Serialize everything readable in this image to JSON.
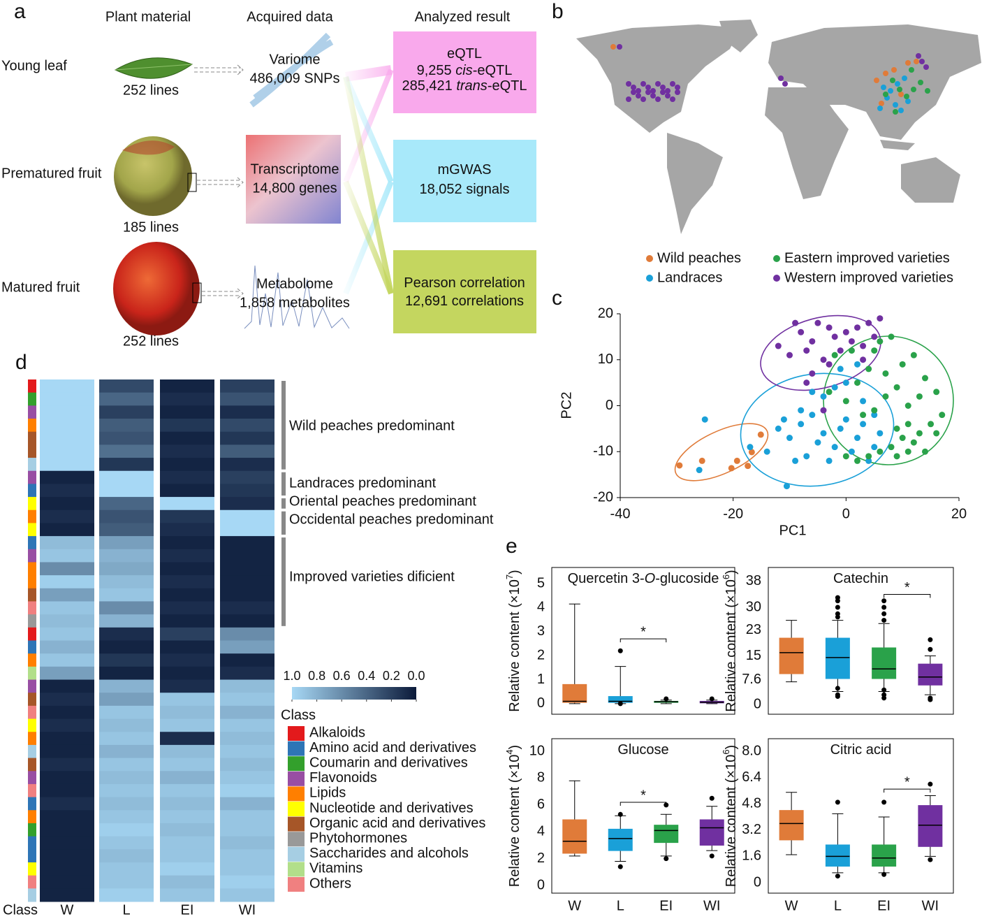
{
  "panel_labels": [
    "a",
    "b",
    "c",
    "d",
    "e"
  ],
  "panel_a": {
    "headers": [
      "Plant material",
      "Acquired data",
      "Analyzed result"
    ],
    "materials": [
      {
        "name": "Young leaf",
        "lines": "252 lines"
      },
      {
        "name": "Prematured fruit",
        "lines": "185 lines"
      },
      {
        "name": "Matured fruit",
        "lines": "252 lines"
      }
    ],
    "data": [
      {
        "name": "Variome",
        "detail": "486,009 SNPs"
      },
      {
        "name": "Transcriptome",
        "detail": "14,800 genes"
      },
      {
        "name": "Metabolome",
        "detail": "1,858 metabolites"
      }
    ],
    "results": [
      [
        [
          {
            "text": "eQTL"
          }
        ],
        [
          {
            "text": "9,255 "
          },
          {
            "text": "cis",
            "italic": true
          },
          {
            "text": "-eQTL"
          }
        ],
        [
          {
            "text": "285,421 "
          },
          {
            "text": "trans",
            "italic": true
          },
          {
            "text": "-eQTL"
          }
        ]
      ],
      [
        [
          {
            "text": "mGWAS"
          }
        ],
        [
          {
            "text": "18,052 signals"
          }
        ]
      ],
      [
        [
          {
            "text": "Pearson correlation"
          }
        ],
        [
          {
            "text": "12,691 correlations"
          }
        ]
      ]
    ],
    "result_colors": [
      "#f9a9ec",
      "#a8e9fa",
      "#c4d65f"
    ]
  },
  "panel_b": {
    "legend": [
      {
        "name": "Wild peaches",
        "color": "#e07b39"
      },
      {
        "name": "Eastern improved varieties",
        "color": "#2aa24a"
      },
      {
        "name": "Landraces",
        "color": "#1aa0d8"
      },
      {
        "name": "Western improved varieties",
        "color": "#7030a0"
      }
    ]
  },
  "chart_data": [
    {
      "type": "scatter",
      "xlabel": "PC1",
      "ylabel": "PC2",
      "xlim": [
        -40,
        20
      ],
      "ylim": [
        -20,
        20
      ],
      "xticks": [
        -40,
        -20,
        0,
        20
      ],
      "yticks": [
        -20,
        -10,
        0,
        10,
        20
      ],
      "series": [
        {
          "name": "Wild peaches",
          "color": "#e07b39",
          "x": [
            -29.5,
            -25.5,
            -20.3,
            -19.3,
            -17.4,
            -16.7,
            -15.1
          ],
          "y": [
            -13,
            -12,
            -13.6,
            -12,
            -13.1,
            -10.1,
            -6.3
          ]
        },
        {
          "name": "Landraces",
          "color": "#1aa0d8",
          "x": [
            -25,
            -26,
            -10.5,
            -17,
            -14,
            -12,
            -10,
            -8,
            -6,
            -5,
            -4,
            -3,
            -2,
            -1,
            0,
            1,
            2,
            3,
            4,
            5,
            6,
            -7,
            -9,
            -11,
            -4,
            -2,
            0,
            3,
            -6,
            -1,
            2,
            5,
            -8
          ],
          "y": [
            -3,
            -14,
            -17.5,
            -9,
            -10,
            -5,
            -7,
            -4,
            -2,
            -8,
            -6,
            -12,
            -9,
            -5,
            -3,
            -10,
            -7,
            -4,
            -12,
            -9,
            -6,
            -11,
            -12,
            -3,
            2,
            4,
            5,
            1,
            3,
            8,
            9,
            -2,
            -1
          ]
        },
        {
          "name": "Eastern improved varieties",
          "color": "#2aa24a",
          "x": [
            -3,
            0,
            2,
            4,
            5,
            6,
            8,
            10,
            12,
            14,
            16,
            17,
            15,
            13,
            11,
            9,
            10,
            12,
            8,
            6,
            4,
            2,
            0,
            14,
            16,
            7,
            9,
            11,
            13,
            5,
            3,
            1,
            -2,
            7,
            11,
            9
          ],
          "y": [
            3,
            1,
            5,
            8,
            12,
            14,
            15,
            9,
            11,
            6,
            3,
            -2,
            -4,
            -6,
            -4,
            -5,
            -7,
            -8,
            -9,
            -10,
            -11,
            -12,
            -11,
            -10,
            -6,
            2,
            4,
            0,
            2,
            -1,
            -2,
            12,
            11,
            7,
            -10,
            -11
          ]
        },
        {
          "name": "Western improved varieties",
          "color": "#7030a0",
          "x": [
            -12,
            -10,
            -8,
            -6,
            -5,
            -3,
            -2,
            0,
            2,
            3,
            4,
            5,
            6,
            -7,
            -4,
            -1,
            1,
            -9,
            3,
            -3,
            -6,
            -4,
            -7
          ],
          "y": [
            13,
            11,
            16,
            14,
            18,
            17,
            15,
            16,
            17,
            13,
            18,
            15,
            19,
            12,
            10,
            12,
            14,
            18,
            10,
            9,
            7,
            -1,
            5
          ]
        }
      ]
    },
    {
      "type": "heatmap",
      "x": [
        "W",
        "L",
        "EI",
        "WI"
      ],
      "strip_label": "Class",
      "z": [
        [
          1,
          0.25,
          0.05,
          0.2
        ],
        [
          1,
          0.4,
          0.1,
          0.3
        ],
        [
          1,
          0.2,
          0.05,
          0.1
        ],
        [
          1,
          0.35,
          0.15,
          0.25
        ],
        [
          1,
          0.3,
          0.05,
          0.15
        ],
        [
          1,
          0.45,
          0.1,
          0.35
        ],
        [
          1,
          0.15,
          0.05,
          0.1
        ],
        [
          0.05,
          1,
          0.1,
          0.2
        ],
        [
          0.1,
          1,
          0.05,
          0.15
        ],
        [
          0.05,
          0.4,
          1,
          0.1
        ],
        [
          0.1,
          0.3,
          0.15,
          1
        ],
        [
          0.05,
          0.35,
          0.1,
          1
        ],
        [
          0.85,
          0.7,
          0.05,
          0.05
        ],
        [
          0.9,
          0.8,
          0.1,
          0.05
        ],
        [
          0.6,
          0.75,
          0.05,
          0.05
        ],
        [
          0.95,
          0.85,
          0.1,
          0.05
        ],
        [
          0.7,
          0.9,
          0.05,
          0.05
        ],
        [
          0.9,
          0.6,
          0.1,
          0.1
        ],
        [
          0.85,
          0.8,
          0.05,
          0.05
        ],
        [
          0.9,
          0.1,
          0.2,
          0.6
        ],
        [
          0.8,
          0.05,
          0.05,
          0.7
        ],
        [
          0.9,
          0.15,
          0.1,
          0.05
        ],
        [
          0.7,
          0.05,
          0.05,
          0.1
        ],
        [
          0.05,
          0.8,
          0.1,
          0.85
        ],
        [
          0.1,
          0.7,
          0.9,
          0.9
        ],
        [
          0.05,
          0.9,
          0.85,
          0.8
        ],
        [
          0.1,
          0.85,
          0.9,
          0.9
        ],
        [
          0.05,
          0.9,
          0.1,
          0.85
        ],
        [
          0.05,
          0.8,
          0.85,
          0.9
        ],
        [
          0.1,
          0.9,
          0.9,
          0.85
        ],
        [
          0.05,
          0.85,
          0.8,
          0.9
        ],
        [
          0.05,
          0.9,
          0.9,
          0.95
        ],
        [
          0.1,
          0.85,
          0.85,
          0.8
        ],
        [
          0.05,
          0.9,
          0.9,
          0.9
        ],
        [
          0.05,
          0.95,
          0.85,
          0.9
        ],
        [
          0.05,
          0.9,
          0.9,
          0.85
        ],
        [
          0.05,
          0.85,
          0.9,
          0.9
        ],
        [
          0.05,
          0.9,
          0.95,
          0.9
        ],
        [
          0.05,
          0.9,
          0.85,
          0.95
        ],
        [
          0.05,
          0.95,
          0.9,
          0.9
        ]
      ],
      "row_classes": [
        "Alkaloids",
        "Coumarin and derivatives",
        "Flavonoids",
        "Lipids",
        "Organic acid and derivatives",
        "Organic acid and derivatives",
        "Saccharides and alcohols",
        "Flavonoids",
        "Amino acid and derivatives",
        "Nucleotide and derivatives",
        "Lipids",
        "Nucleotide and derivatives",
        "Amino acid and derivatives",
        "Flavonoids",
        "Lipids",
        "Lipids",
        "Organic acid and derivatives",
        "Others",
        "Phytohormones",
        "Alkaloids",
        "Amino acid and derivatives",
        "Lipids",
        "Vitamins",
        "Flavonoids",
        "Organic acid and derivatives",
        "Others",
        "Nucleotide and derivatives",
        "Lipids",
        "Saccharides and alcohols",
        "Organic acid and derivatives",
        "Flavonoids",
        "Others",
        "Amino acid and derivatives",
        "Lipids",
        "Coumarin and derivatives",
        "Amino acid and derivatives",
        "Amino acid and derivatives",
        "Nucleotide and derivatives",
        "Others",
        "Saccharides and alcohols"
      ],
      "annotations": [
        "Wild peaches predominant",
        "Landraces predominant",
        "Oriental peaches predominant",
        "Occidental peaches predominant",
        "Improved varieties dificient"
      ],
      "colorbar": {
        "ticks": [
          {
            "value": 1,
            "label": "1.0"
          },
          0.8,
          0.6,
          0.4,
          0.2,
          {
            "value": 0,
            "label": "0.0"
          }
        ],
        "colors": [
          "#a7d8f5",
          "#0b1a3a"
        ]
      },
      "legend_title": "Class",
      "classes": [
        {
          "name": "Alkaloids",
          "color": "#e31a1c"
        },
        {
          "name": "Amino acid and derivatives",
          "color": "#2e75b6"
        },
        {
          "name": "Coumarin and derivatives",
          "color": "#33a02c"
        },
        {
          "name": "Flavonoids",
          "color": "#984ea3"
        },
        {
          "name": "Lipids",
          "color": "#ff7f00"
        },
        {
          "name": "Nucleotide and derivatives",
          "color": "#ffff00"
        },
        {
          "name": "Organic acid and derivatives",
          "color": "#a65628"
        },
        {
          "name": "Phytohormones",
          "color": "#999999"
        },
        {
          "name": "Saccharides and alcohols",
          "color": "#a6cee3"
        },
        {
          "name": "Vitamins",
          "color": "#b2df8a"
        },
        {
          "name": "Others",
          "color": "#f08080"
        }
      ]
    },
    {
      "type": "box",
      "title": [
        {
          "text": "Quercetin 3-"
        },
        {
          "text": "O",
          "italic": true
        },
        {
          "text": "-glucoside"
        }
      ],
      "ylabel": [
        {
          "text": "Relative content (×10"
        },
        {
          "text": "7",
          "sup": true
        },
        {
          "text": ")"
        }
      ],
      "ylim": [
        -0.44,
        5.67
      ],
      "yticks": [
        0,
        1,
        2,
        3,
        4,
        5
      ],
      "colors": [
        "#e07b39",
        "#1aa0d8",
        "#2aa24a",
        "#7030a0"
      ],
      "boxes": [
        {
          "min": 0,
          "q1": 0.05,
          "median": 0.1,
          "q3": 0.8,
          "max": 4.15,
          "outliers": []
        },
        {
          "min": 0,
          "q1": 0.05,
          "median": 0.1,
          "q3": 0.3,
          "max": 1.55,
          "outliers": [
            2.2,
            0
          ]
        },
        {
          "min": 0,
          "q1": 0.05,
          "median": 0.08,
          "q3": 0.1,
          "max": 0.15,
          "outliers": [
            0.2
          ]
        },
        {
          "min": 0,
          "q1": 0.03,
          "median": 0.06,
          "q3": 0.1,
          "max": 0.15,
          "outliers": [
            0.2
          ]
        }
      ],
      "significance": {
        "between": [
          "L",
          "EI"
        ],
        "y": 2.7,
        "label": "*"
      }
    },
    {
      "type": "box",
      "title": [
        {
          "text": "Catechin"
        }
      ],
      "ylabel": [
        {
          "text": "Relative content (×10"
        },
        {
          "text": "6",
          "sup": true
        },
        {
          "text": ")"
        }
      ],
      "ylim": [
        -3.0,
        42.3
      ],
      "yticks": [
        0,
        7.6,
        15,
        23,
        30,
        38
      ],
      "colors": [
        "#e07b39",
        "#1aa0d8",
        "#2aa24a",
        "#7030a0"
      ],
      "boxes": [
        {
          "min": 7,
          "q1": 9.5,
          "median": 16,
          "q3": 20.5,
          "max": 26,
          "outliers": []
        },
        {
          "min": 4,
          "q1": 8,
          "median": 14.5,
          "q3": 20.5,
          "max": 26,
          "outliers": [
            27,
            28,
            30,
            32,
            33,
            3,
            2.5,
            5
          ]
        },
        {
          "min": 4,
          "q1": 8,
          "median": 11,
          "q3": 17.5,
          "max": 25,
          "outliers": [
            26,
            28,
            30,
            32,
            3,
            2,
            4.5
          ]
        },
        {
          "min": 3,
          "q1": 6,
          "median": 8.5,
          "q3": 12.5,
          "max": 15,
          "outliers": [
            17,
            20,
            2,
            1.5
          ]
        }
      ],
      "significance": {
        "between": [
          "EI",
          "WI"
        ],
        "y": 34,
        "label": "*"
      }
    },
    {
      "type": "box",
      "title": [
        {
          "text": "Glucose"
        }
      ],
      "ylabel": [
        {
          "text": "Relative content (×10"
        },
        {
          "text": "4",
          "sup": true
        },
        {
          "text": ")"
        }
      ],
      "categories": [
        "W",
        "L",
        "EI",
        "WI"
      ],
      "ylim": [
        -0.57,
        10.94
      ],
      "yticks": [
        0,
        2,
        4,
        6,
        8,
        10
      ],
      "colors": [
        "#e07b39",
        "#1aa0d8",
        "#2aa24a",
        "#7030a0"
      ],
      "boxes": [
        {
          "min": 2.2,
          "q1": 2.4,
          "median": 3.3,
          "q3": 4.9,
          "max": 7.8,
          "outliers": []
        },
        {
          "min": 1.8,
          "q1": 2.6,
          "median": 3.5,
          "q3": 4.2,
          "max": 5.2,
          "outliers": [
            1.4,
            5.3
          ]
        },
        {
          "min": 2.2,
          "q1": 3.2,
          "median": 4.1,
          "q3": 4.5,
          "max": 5.3,
          "outliers": [
            2.0,
            6.0
          ]
        },
        {
          "min": 2.6,
          "q1": 3.0,
          "median": 4.3,
          "q3": 4.9,
          "max": 5.9,
          "outliers": [
            2.2,
            6.5
          ]
        }
      ],
      "significance": {
        "between": [
          "L",
          "EI"
        ],
        "y": 6.2,
        "label": "*"
      }
    },
    {
      "type": "box",
      "title": [
        {
          "text": "Citric acid"
        }
      ],
      "ylabel": [
        {
          "text": "Relative content (×10"
        },
        {
          "text": "6",
          "sup": true
        },
        {
          "text": ")"
        }
      ],
      "categories": [
        "W",
        "L",
        "EI",
        "WI"
      ],
      "ylim": [
        -0.64,
        8.77
      ],
      "yticks": [
        0,
        1.6,
        3.2,
        4.8,
        6.4,
        {
          "value": 8,
          "label": "8.0"
        }
      ],
      "colors": [
        "#e07b39",
        "#1aa0d8",
        "#2aa24a",
        "#7030a0"
      ],
      "boxes": [
        {
          "min": 1.7,
          "q1": 2.6,
          "median": 3.6,
          "q3": 4.4,
          "max": 5.5,
          "outliers": []
        },
        {
          "min": 0.6,
          "q1": 1.0,
          "median": 1.6,
          "q3": 2.3,
          "max": 4.2,
          "outliers": [
            0.4,
            4.9
          ]
        },
        {
          "min": 0.6,
          "q1": 1.0,
          "median": 1.5,
          "q3": 2.3,
          "max": 4.0,
          "outliers": [
            0.5,
            4.9
          ]
        },
        {
          "min": 1.6,
          "q1": 2.2,
          "median": 3.5,
          "q3": 4.7,
          "max": 5.3,
          "outliers": [
            1.4,
            6.0
          ]
        }
      ],
      "significance": {
        "between": [
          "EI",
          "WI"
        ],
        "y": 5.7,
        "label": "*"
      }
    }
  ]
}
